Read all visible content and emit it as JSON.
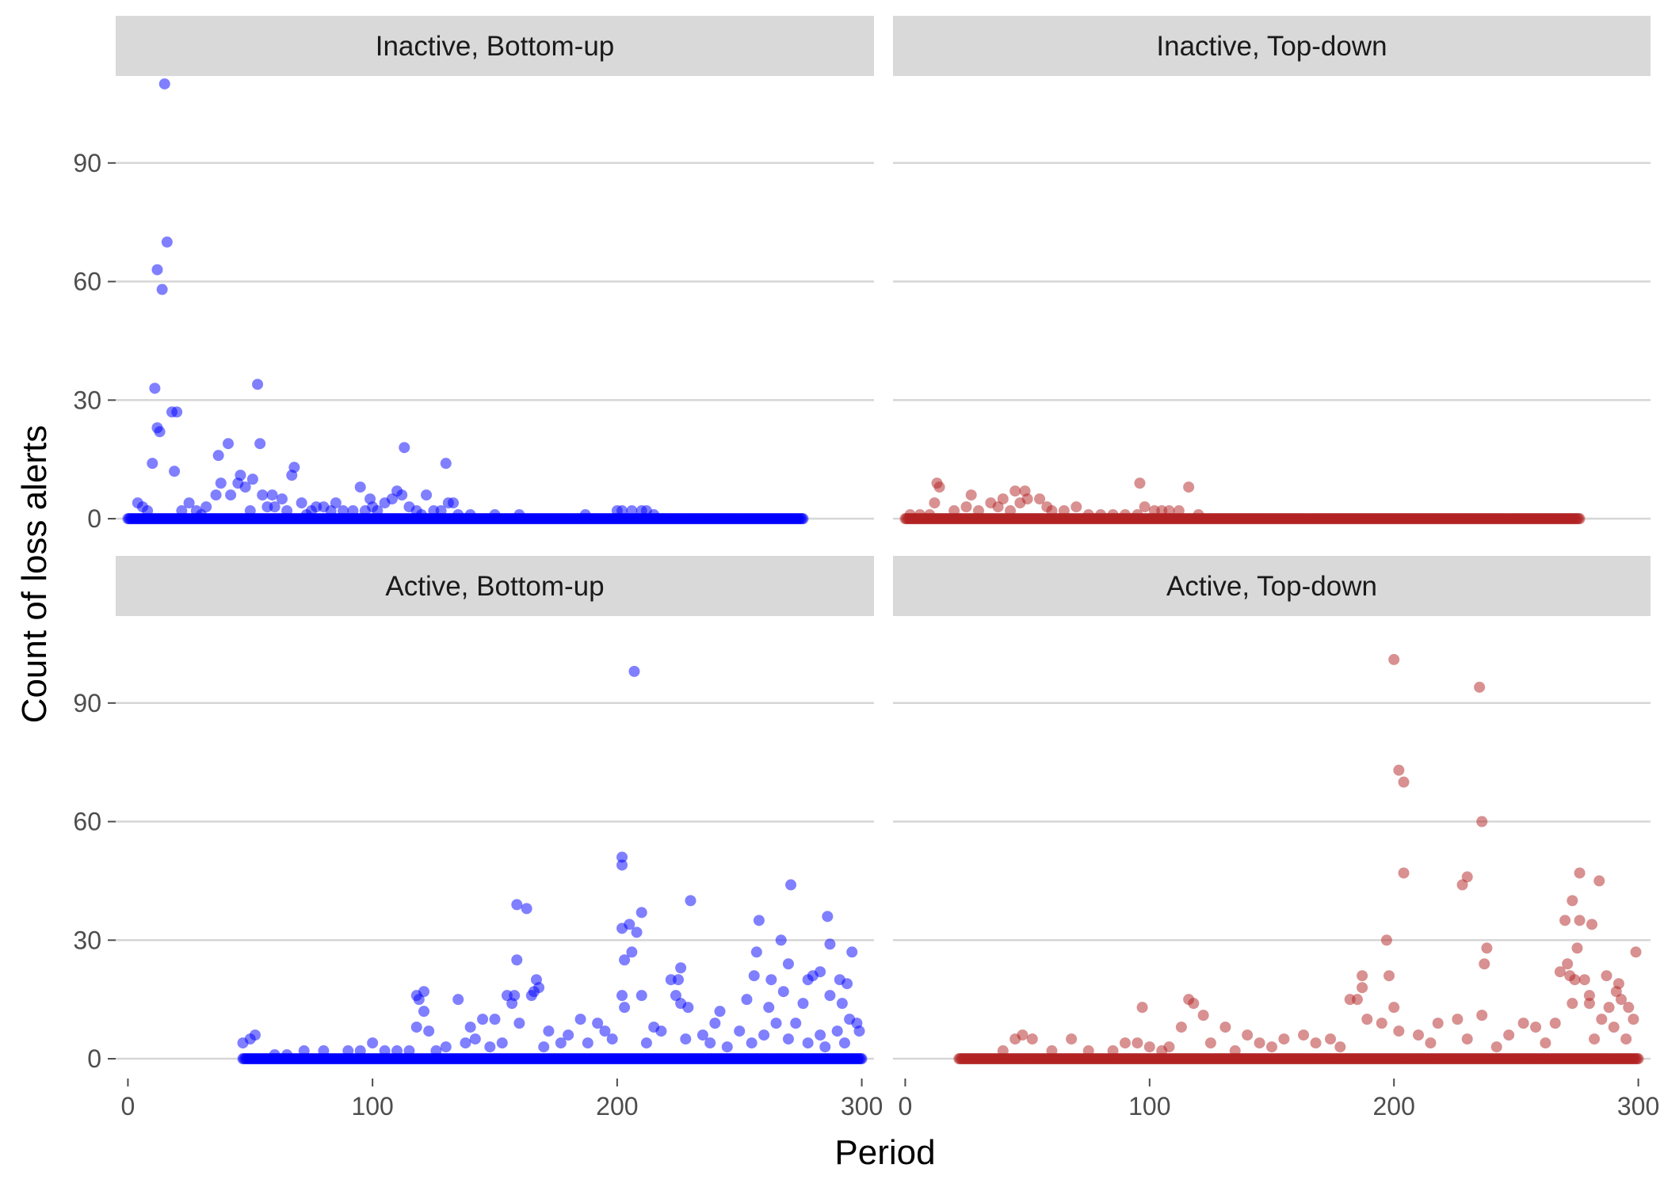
{
  "chart_data": {
    "type": "scatter",
    "xlabel": "Period",
    "ylabel": "Count of loss alerts",
    "xlim": [
      -5,
      305
    ],
    "ylim": [
      -5,
      112
    ],
    "x_ticks": [
      0,
      100,
      200,
      300
    ],
    "y_ticks": [
      0,
      30,
      60,
      90
    ],
    "grid": "horizontal major lines",
    "point_opacity": 0.5,
    "colors": {
      "blue": "#0000FF",
      "red": "#B22222"
    },
    "facets": [
      {
        "label": "Inactive, Bottom-up",
        "color": "#0000FF",
        "baseline_x": [
          0,
          276
        ],
        "points": [
          [
            15,
            110
          ],
          [
            16,
            70
          ],
          [
            12,
            63
          ],
          [
            14,
            58
          ],
          [
            18,
            27
          ],
          [
            20,
            27
          ],
          [
            11,
            33
          ],
          [
            53,
            34
          ],
          [
            12,
            23
          ],
          [
            13,
            22
          ],
          [
            10,
            14
          ],
          [
            19,
            12
          ],
          [
            54,
            19
          ],
          [
            41,
            19
          ],
          [
            37,
            16
          ],
          [
            113,
            18
          ],
          [
            46,
            11
          ],
          [
            51,
            10
          ],
          [
            68,
            13
          ],
          [
            67,
            11
          ],
          [
            130,
            14
          ],
          [
            38,
            9
          ],
          [
            45,
            9
          ],
          [
            48,
            8
          ],
          [
            95,
            8
          ],
          [
            99,
            5
          ],
          [
            110,
            7
          ],
          [
            112,
            6
          ],
          [
            122,
            6
          ],
          [
            36,
            6
          ],
          [
            42,
            6
          ],
          [
            55,
            6
          ],
          [
            59,
            6
          ],
          [
            63,
            5
          ],
          [
            71,
            4
          ],
          [
            77,
            3
          ],
          [
            85,
            4
          ],
          [
            100,
            3
          ],
          [
            105,
            4
          ],
          [
            108,
            5
          ],
          [
            115,
            3
          ],
          [
            125,
            2
          ],
          [
            131,
            4
          ],
          [
            133,
            4
          ],
          [
            4,
            4
          ],
          [
            6,
            3
          ],
          [
            8,
            2
          ],
          [
            25,
            4
          ],
          [
            28,
            2
          ],
          [
            32,
            3
          ],
          [
            60,
            3
          ],
          [
            65,
            2
          ],
          [
            75,
            2
          ],
          [
            80,
            3
          ],
          [
            88,
            2
          ],
          [
            92,
            2
          ],
          [
            118,
            2
          ],
          [
            128,
            2
          ],
          [
            140,
            1
          ],
          [
            150,
            1
          ],
          [
            160,
            1
          ],
          [
            187,
            1
          ],
          [
            200,
            2
          ],
          [
            202,
            2
          ],
          [
            206,
            2
          ],
          [
            210,
            2
          ],
          [
            212,
            2
          ],
          [
            215,
            1
          ],
          [
            22,
            2
          ],
          [
            30,
            1
          ],
          [
            50,
            2
          ],
          [
            57,
            3
          ],
          [
            73,
            1
          ],
          [
            83,
            2
          ],
          [
            97,
            2
          ],
          [
            102,
            2
          ],
          [
            120,
            1
          ],
          [
            135,
            1
          ]
        ]
      },
      {
        "label": "Inactive, Top-down",
        "color": "#B22222",
        "baseline_x": [
          0,
          276
        ],
        "points": [
          [
            13,
            9
          ],
          [
            14,
            8
          ],
          [
            96,
            9
          ],
          [
            116,
            8
          ],
          [
            45,
            7
          ],
          [
            49,
            7
          ],
          [
            27,
            6
          ],
          [
            40,
            5
          ],
          [
            50,
            5
          ],
          [
            55,
            5
          ],
          [
            35,
            4
          ],
          [
            12,
            4
          ],
          [
            98,
            3
          ],
          [
            70,
            3
          ],
          [
            20,
            2
          ],
          [
            25,
            3
          ],
          [
            30,
            2
          ],
          [
            38,
            3
          ],
          [
            43,
            2
          ],
          [
            60,
            2
          ],
          [
            65,
            2
          ],
          [
            75,
            1
          ],
          [
            80,
            1
          ],
          [
            85,
            1
          ],
          [
            90,
            1
          ],
          [
            102,
            2
          ],
          [
            105,
            2
          ],
          [
            108,
            2
          ],
          [
            112,
            2
          ],
          [
            2,
            1
          ],
          [
            6,
            1
          ],
          [
            10,
            1
          ],
          [
            47,
            4
          ],
          [
            58,
            3
          ],
          [
            120,
            1
          ],
          [
            95,
            1
          ]
        ]
      },
      {
        "label": "Active, Bottom-up",
        "color": "#0000FF",
        "baseline_x": [
          47,
          300
        ],
        "points": [
          [
            207,
            98
          ],
          [
            202,
            51
          ],
          [
            202,
            49
          ],
          [
            271,
            44
          ],
          [
            230,
            40
          ],
          [
            159,
            39
          ],
          [
            163,
            38
          ],
          [
            286,
            36
          ],
          [
            258,
            35
          ],
          [
            210,
            37
          ],
          [
            205,
            34
          ],
          [
            202,
            33
          ],
          [
            208,
            32
          ],
          [
            267,
            30
          ],
          [
            287,
            29
          ],
          [
            296,
            27
          ],
          [
            206,
            27
          ],
          [
            257,
            27
          ],
          [
            203,
            25
          ],
          [
            159,
            25
          ],
          [
            270,
            24
          ],
          [
            226,
            23
          ],
          [
            283,
            22
          ],
          [
            280,
            21
          ],
          [
            256,
            21
          ],
          [
            225,
            20
          ],
          [
            167,
            20
          ],
          [
            278,
            20
          ],
          [
            222,
            20
          ],
          [
            291,
            20
          ],
          [
            168,
            18
          ],
          [
            166,
            17
          ],
          [
            118,
            16
          ],
          [
            121,
            17
          ],
          [
            294,
            19
          ],
          [
            263,
            20
          ],
          [
            119,
            15
          ],
          [
            135,
            15
          ],
          [
            155,
            16
          ],
          [
            158,
            16
          ],
          [
            165,
            16
          ],
          [
            202,
            16
          ],
          [
            210,
            16
          ],
          [
            224,
            16
          ],
          [
            253,
            15
          ],
          [
            268,
            17
          ],
          [
            287,
            16
          ],
          [
            157,
            14
          ],
          [
            203,
            13
          ],
          [
            229,
            13
          ],
          [
            226,
            14
          ],
          [
            242,
            12
          ],
          [
            262,
            13
          ],
          [
            276,
            14
          ],
          [
            292,
            14
          ],
          [
            121,
            12
          ],
          [
            185,
            10
          ],
          [
            150,
            10
          ],
          [
            145,
            10
          ],
          [
            192,
            9
          ],
          [
            215,
            8
          ],
          [
            240,
            9
          ],
          [
            265,
            9
          ],
          [
            273,
            9
          ],
          [
            298,
            9
          ],
          [
            295,
            10
          ],
          [
            118,
            8
          ],
          [
            123,
            7
          ],
          [
            140,
            8
          ],
          [
            160,
            9
          ],
          [
            172,
            7
          ],
          [
            180,
            6
          ],
          [
            195,
            7
          ],
          [
            218,
            7
          ],
          [
            235,
            6
          ],
          [
            250,
            7
          ],
          [
            260,
            6
          ],
          [
            283,
            6
          ],
          [
            290,
            7
          ],
          [
            299,
            7
          ],
          [
            47,
            4
          ],
          [
            50,
            5
          ],
          [
            52,
            6
          ],
          [
            100,
            4
          ],
          [
            130,
            3
          ],
          [
            138,
            4
          ],
          [
            142,
            5
          ],
          [
            148,
            3
          ],
          [
            153,
            4
          ],
          [
            170,
            3
          ],
          [
            177,
            4
          ],
          [
            188,
            4
          ],
          [
            198,
            5
          ],
          [
            212,
            4
          ],
          [
            228,
            5
          ],
          [
            238,
            4
          ],
          [
            245,
            3
          ],
          [
            255,
            4
          ],
          [
            270,
            5
          ],
          [
            278,
            4
          ],
          [
            285,
            3
          ],
          [
            293,
            4
          ],
          [
            72,
            2
          ],
          [
            80,
            2
          ],
          [
            90,
            2
          ],
          [
            95,
            2
          ],
          [
            105,
            2
          ],
          [
            110,
            2
          ],
          [
            115,
            2
          ],
          [
            126,
            2
          ],
          [
            60,
            1
          ],
          [
            65,
            1
          ]
        ]
      },
      {
        "label": "Active, Top-down",
        "color": "#B22222",
        "baseline_x": [
          22,
          300
        ],
        "points": [
          [
            200,
            101
          ],
          [
            235,
            94
          ],
          [
            202,
            73
          ],
          [
            204,
            70
          ],
          [
            236,
            60
          ],
          [
            284,
            45
          ],
          [
            276,
            47
          ],
          [
            230,
            46
          ],
          [
            228,
            44
          ],
          [
            204,
            47
          ],
          [
            273,
            40
          ],
          [
            276,
            35
          ],
          [
            281,
            34
          ],
          [
            270,
            35
          ],
          [
            197,
            30
          ],
          [
            238,
            28
          ],
          [
            275,
            28
          ],
          [
            299,
            27
          ],
          [
            237,
            24
          ],
          [
            271,
            24
          ],
          [
            198,
            21
          ],
          [
            187,
            21
          ],
          [
            272,
            21
          ],
          [
            278,
            20
          ],
          [
            287,
            21
          ],
          [
            292,
            19
          ],
          [
            291,
            17
          ],
          [
            187,
            18
          ],
          [
            185,
            15
          ],
          [
            182,
            15
          ],
          [
            116,
            15
          ],
          [
            118,
            14
          ],
          [
            274,
            20
          ],
          [
            268,
            22
          ],
          [
            280,
            16
          ],
          [
            293,
            15
          ],
          [
            200,
            13
          ],
          [
            97,
            13
          ],
          [
            280,
            14
          ],
          [
            273,
            14
          ],
          [
            288,
            13
          ],
          [
            296,
            13
          ],
          [
            122,
            11
          ],
          [
            226,
            10
          ],
          [
            236,
            11
          ],
          [
            189,
            10
          ],
          [
            195,
            9
          ],
          [
            218,
            9
          ],
          [
            253,
            9
          ],
          [
            266,
            9
          ],
          [
            285,
            10
          ],
          [
            298,
            10
          ],
          [
            113,
            8
          ],
          [
            131,
            8
          ],
          [
            140,
            6
          ],
          [
            155,
            5
          ],
          [
            163,
            6
          ],
          [
            174,
            5
          ],
          [
            202,
            7
          ],
          [
            210,
            6
          ],
          [
            247,
            6
          ],
          [
            258,
            8
          ],
          [
            290,
            8
          ],
          [
            45,
            5
          ],
          [
            48,
            6
          ],
          [
            52,
            5
          ],
          [
            68,
            5
          ],
          [
            90,
            4
          ],
          [
            95,
            4
          ],
          [
            100,
            3
          ],
          [
            108,
            3
          ],
          [
            125,
            4
          ],
          [
            145,
            4
          ],
          [
            168,
            4
          ],
          [
            178,
            3
          ],
          [
            215,
            4
          ],
          [
            230,
            5
          ],
          [
            242,
            3
          ],
          [
            262,
            4
          ],
          [
            282,
            5
          ],
          [
            295,
            5
          ],
          [
            40,
            2
          ],
          [
            60,
            2
          ],
          [
            75,
            2
          ],
          [
            85,
            2
          ],
          [
            105,
            2
          ],
          [
            135,
            2
          ],
          [
            150,
            3
          ]
        ]
      }
    ]
  }
}
